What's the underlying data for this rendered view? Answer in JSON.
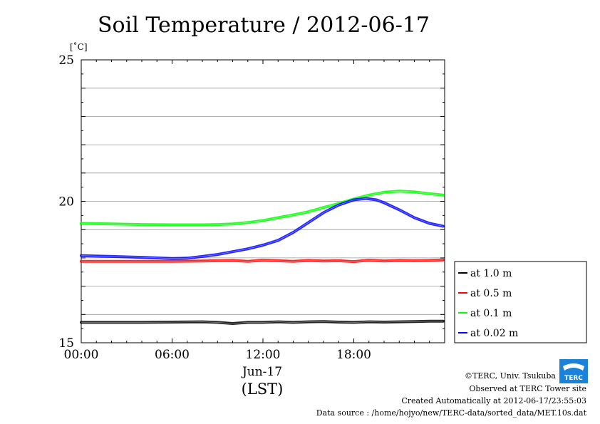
{
  "chart_data": {
    "type": "line",
    "title": "Soil Temperature / 2012-06-17",
    "ylabel": "[˚C]",
    "xlabel_date": "Jun-17",
    "xlabel_tz": "(LST)",
    "ylim": [
      15,
      25
    ],
    "yticks": [
      15,
      20,
      25
    ],
    "ytick_labels": [
      "15",
      "20",
      "25"
    ],
    "xlim": [
      0,
      24
    ],
    "xticks": [
      0,
      6,
      12,
      18
    ],
    "xtick_labels": [
      "00:00",
      "06:00",
      "12:00",
      "18:00"
    ],
    "grid": true,
    "legend_position": "right-bottom",
    "series": [
      {
        "name": "at 1.0 m",
        "color": "#000000",
        "x": [
          0,
          2,
          4,
          6,
          8,
          9,
          10,
          11,
          12,
          13,
          14,
          15,
          16,
          17,
          18,
          19,
          20,
          21,
          22,
          23,
          23.9
        ],
        "y": [
          15.72,
          15.72,
          15.72,
          15.73,
          15.74,
          15.72,
          15.68,
          15.72,
          15.72,
          15.74,
          15.72,
          15.74,
          15.75,
          15.73,
          15.72,
          15.74,
          15.73,
          15.74,
          15.75,
          15.76,
          15.76
        ]
      },
      {
        "name": "at 0.5 m",
        "color": "#ff0000",
        "x": [
          0,
          2,
          4,
          6,
          8,
          9,
          10,
          11,
          12,
          13,
          14,
          15,
          16,
          17,
          18,
          19,
          20,
          21,
          22,
          23,
          23.9
        ],
        "y": [
          17.88,
          17.88,
          17.88,
          17.88,
          17.89,
          17.9,
          17.91,
          17.88,
          17.92,
          17.9,
          17.88,
          17.91,
          17.89,
          17.9,
          17.87,
          17.92,
          17.89,
          17.91,
          17.9,
          17.91,
          17.93
        ]
      },
      {
        "name": "at 0.1 m",
        "color": "#00ff00",
        "x": [
          0,
          2,
          4,
          6,
          8,
          9,
          10,
          11,
          12,
          13,
          14,
          15,
          16,
          17,
          18,
          19,
          20,
          21,
          22,
          23,
          23.9
        ],
        "y": [
          19.22,
          19.2,
          19.18,
          19.17,
          19.17,
          19.18,
          19.2,
          19.25,
          19.32,
          19.42,
          19.52,
          19.63,
          19.78,
          19.92,
          20.08,
          20.22,
          20.32,
          20.36,
          20.33,
          20.27,
          20.22
        ]
      },
      {
        "name": "at 0.02 m",
        "color": "#0000ff",
        "x": [
          0,
          2,
          4,
          6,
          7,
          8,
          9,
          10,
          11,
          12,
          13,
          14,
          15,
          16,
          17,
          18,
          18.8,
          19.5,
          20,
          21,
          22,
          23,
          23.9
        ],
        "y": [
          18.08,
          18.05,
          18.02,
          17.98,
          17.99,
          18.05,
          18.12,
          18.22,
          18.32,
          18.45,
          18.62,
          18.9,
          19.25,
          19.6,
          19.87,
          20.05,
          20.1,
          20.05,
          19.95,
          19.7,
          19.42,
          19.22,
          19.12
        ]
      }
    ]
  },
  "credits": {
    "copyright": "©TERC, Univ. Tsukuba",
    "observed": "Observed at TERC Tower site",
    "created": "Created Automatically at 2012-06-17/23:55:03",
    "source": "Data source : /home/hojyo/new/TERC-data/sorted_data/MET.10s.dat",
    "logo_text": "TERC"
  }
}
